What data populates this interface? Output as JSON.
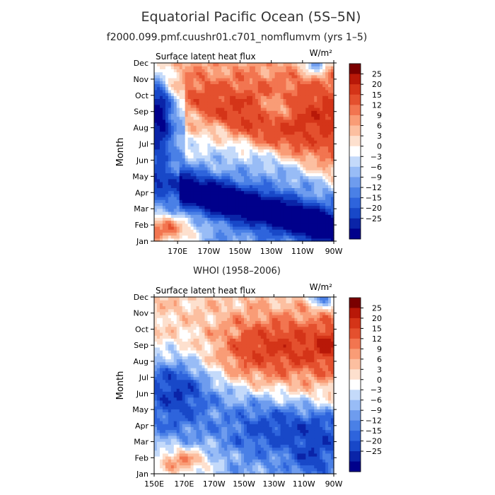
{
  "figure": {
    "title": "Equatorial Pacific Ocean (5S–5N)"
  },
  "chart_data": [
    {
      "type": "heatmap",
      "name": "model",
      "title": "f2000.099.pmf.cuushr01.c701_nomflumvm (yrs 1–5)",
      "left_label": "Surface latent heat flux",
      "units": "W/m²",
      "ylabel": "Month",
      "xlabel": "",
      "x_tick_labels": [
        "170E",
        "170W",
        "150W",
        "130W",
        "110W",
        "90W"
      ],
      "x_ticks": [
        170,
        190,
        210,
        230,
        250,
        270
      ],
      "xlim": [
        155,
        270
      ],
      "y_tick_labels": [
        "Jan",
        "Feb",
        "Mar",
        "Apr",
        "May",
        "Jun",
        "Jul",
        "Aug",
        "Sep",
        "Oct",
        "Nov",
        "Dec"
      ],
      "ylim": [
        1,
        12
      ],
      "colorbar_labels": [
        "25",
        "20",
        "15",
        "12",
        "9",
        "6",
        "3",
        "0",
        "−3",
        "−6",
        "−9",
        "−12",
        "−15",
        "−20",
        "−25"
      ]
    },
    {
      "type": "heatmap",
      "name": "observations",
      "title": "WHOI (1958–2006)",
      "left_label": "Surface latent heat flux",
      "units": "W/m²",
      "ylabel": "Month",
      "xlabel": "",
      "x_tick_labels": [
        "150E",
        "170E",
        "170W",
        "150W",
        "130W",
        "110W",
        "90W"
      ],
      "x_ticks": [
        150,
        170,
        190,
        210,
        230,
        250,
        270
      ],
      "xlim": [
        150,
        270
      ],
      "y_tick_labels": [
        "Jan",
        "Feb",
        "Mar",
        "Apr",
        "May",
        "Jun",
        "Jul",
        "Aug",
        "Sep",
        "Oct",
        "Nov",
        "Dec"
      ],
      "ylim": [
        1,
        12
      ],
      "colorbar_labels": [
        "25",
        "20",
        "15",
        "12",
        "9",
        "6",
        "3",
        "0",
        "−3",
        "−6",
        "−9",
        "−12",
        "−15",
        "−20",
        "−25"
      ]
    }
  ],
  "colorscale": {
    "levels": [
      -25,
      -20,
      -15,
      -12,
      -9,
      -6,
      -3,
      0,
      3,
      6,
      9,
      12,
      15,
      20,
      25
    ],
    "colors": [
      "#00008b",
      "#0a24a8",
      "#1848c8",
      "#2e64dc",
      "#4a80e6",
      "#6e9cee",
      "#98bcf6",
      "#c4dafa",
      "#ffffff",
      "#fde0ce",
      "#fcbfa0",
      "#f99c76",
      "#f27550",
      "#e4502e",
      "#d43418",
      "#b81808",
      "#7a0000"
    ]
  }
}
